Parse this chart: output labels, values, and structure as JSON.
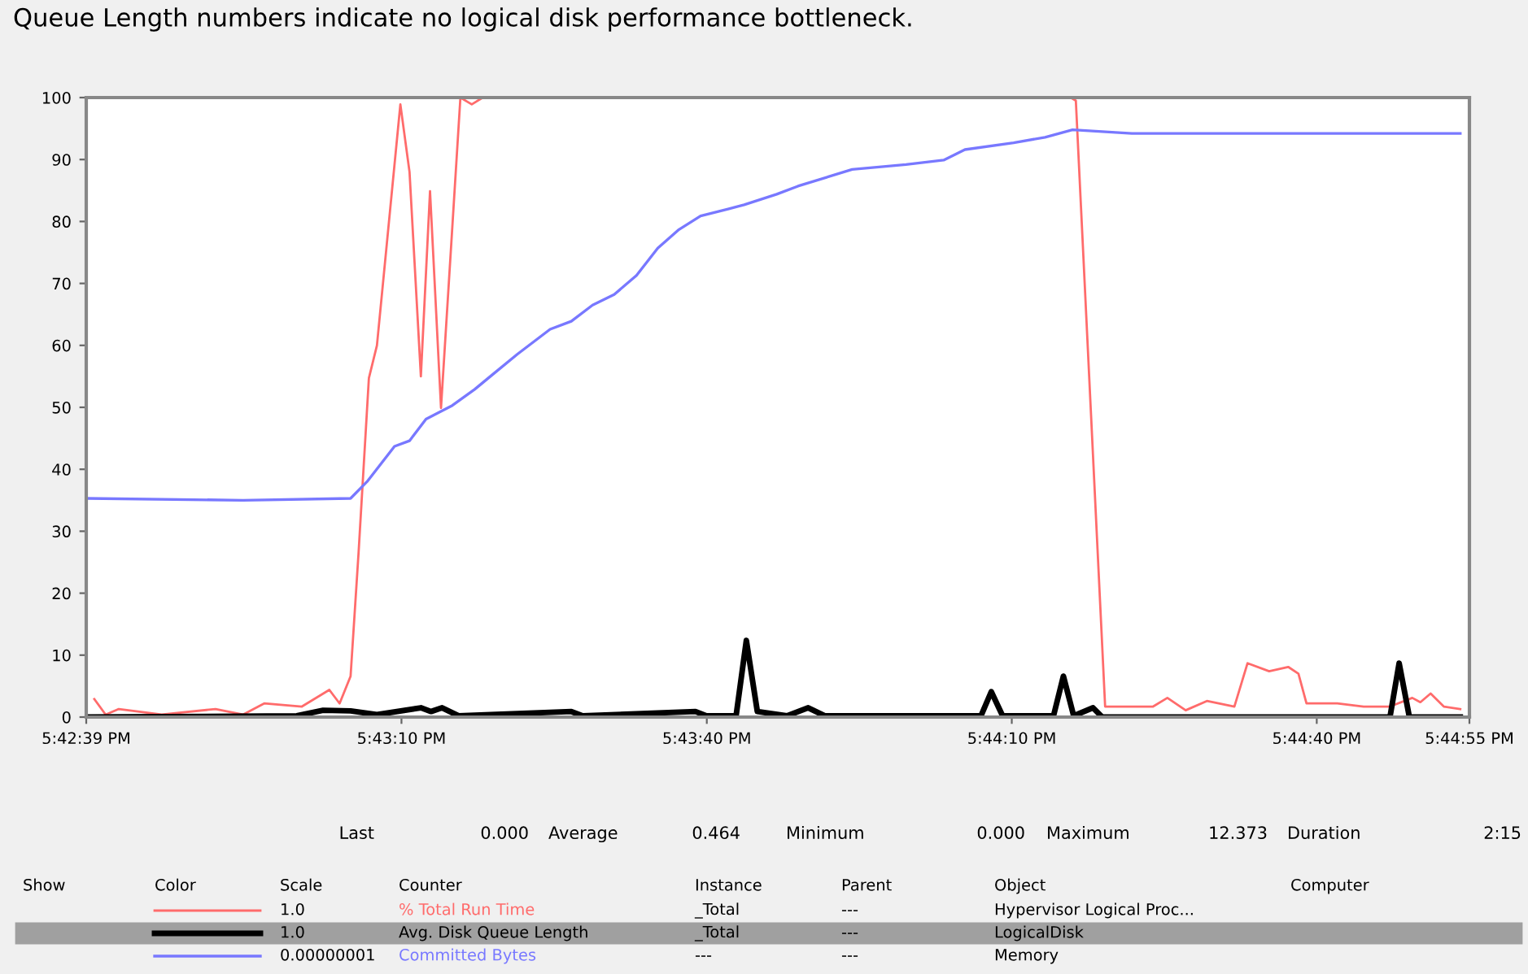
{
  "chart_data": {
    "type": "line",
    "annotations": [
      "Queue Length numbers indicate no logical disk performance bottleneck.",
      "Last",
      "0.000",
      "Average",
      "0.464",
      "Minimum",
      "0.000",
      "Maximum",
      "12.373",
      "Duration",
      "2:15",
      "Show",
      "Color",
      "Scale",
      "Counter",
      "Instance",
      "Parent",
      "Object",
      "Computer",
      "1.0",
      "_Total",
      "---",
      "Hypervisor Logical Proc...",
      "1.0",
      "_Total",
      "---",
      "LogicalDisk",
      "0.00000001",
      "---",
      "---",
      "Memory"
    ],
    "xlim": [
      17.71083,
      17.74861
    ],
    "xticks": [
      {
        "value": 17.71083,
        "label": "5:42:39 PM"
      },
      {
        "value": 17.71944,
        "label": "5:43:10 PM"
      },
      {
        "value": 17.72778,
        "label": "5:43:40 PM"
      },
      {
        "value": 17.73611,
        "label": "5:44:10 PM"
      },
      {
        "value": 17.74444,
        "label": "5:44:40 PM"
      },
      {
        "value": 17.74861,
        "label": "5:44:55 PM"
      }
    ],
    "ylim": [
      0,
      100
    ],
    "yticks": [
      0,
      10,
      20,
      30,
      40,
      50,
      60,
      70,
      80,
      90,
      100
    ],
    "grid": false,
    "legend": "bottom",
    "marker": "none",
    "line_style": "solid",
    "series": [
      {
        "name": "% Total Run Time",
        "color": "#ff6b6b",
        "x": [
          17.71105,
          17.71136,
          17.71172,
          17.71289,
          17.71436,
          17.71511,
          17.71569,
          17.71672,
          17.71747,
          17.71775,
          17.71805,
          17.71827,
          17.71855,
          17.71877,
          17.71941,
          17.71966,
          17.71997,
          17.72022,
          17.72052,
          17.72105,
          17.72136,
          17.72166,
          17.73772,
          17.73786,
          17.73866,
          17.73997,
          17.74036,
          17.74086,
          17.74144,
          17.74219,
          17.74255,
          17.74314,
          17.74366,
          17.74394,
          17.74416,
          17.745,
          17.74572,
          17.74644,
          17.74705,
          17.74727,
          17.74755,
          17.74791,
          17.74836
        ],
        "values": [
          2.9,
          0.4,
          1.3,
          0.4,
          1.3,
          0.4,
          2.2,
          1.7,
          4.4,
          2.2,
          6.6,
          26.7,
          54.7,
          60,
          98.9,
          88,
          55,
          84.9,
          49.9,
          100,
          98.9,
          100,
          100,
          99.5,
          1.7,
          1.7,
          3.1,
          1.1,
          2.6,
          1.7,
          8.7,
          7.4,
          8.1,
          7,
          2.2,
          2.2,
          1.7,
          1.7,
          3.1,
          2.4,
          3.8,
          1.7,
          1.3
        ]
      },
      {
        "name": "Avg. Disk Queue Length",
        "color": "#000000",
        "x": [
          17.71083,
          17.71658,
          17.7173,
          17.71805,
          17.71877,
          17.71997,
          17.72025,
          17.72055,
          17.721,
          17.72408,
          17.72439,
          17.72747,
          17.72777,
          17.72858,
          17.72886,
          17.72916,
          17.72997,
          17.73055,
          17.731,
          17.73527,
          17.73555,
          17.73586,
          17.73725,
          17.73752,
          17.7378,
          17.73833,
          17.73858,
          17.74644,
          17.74669,
          17.74697,
          17.74836
        ],
        "values": [
          0,
          0.2,
          1.1,
          1,
          0.4,
          1.5,
          0.9,
          1.5,
          0.2,
          0.9,
          0.2,
          0.9,
          0.2,
          0.2,
          12.373,
          0.9,
          0.2,
          1.5,
          0.2,
          0.2,
          4.1,
          0.2,
          0.2,
          6.6,
          0.2,
          1.5,
          0,
          0,
          8.7,
          0,
          0
        ]
      },
      {
        "name": "Committed Bytes",
        "color": "#7878ff",
        "x": [
          17.71083,
          17.71511,
          17.71805,
          17.7185,
          17.71925,
          17.71966,
          17.72011,
          17.72083,
          17.72144,
          17.72189,
          17.72261,
          17.7235,
          17.72408,
          17.72466,
          17.72525,
          17.72586,
          17.72644,
          17.72702,
          17.72761,
          17.72836,
          17.7288,
          17.72969,
          17.73027,
          17.73175,
          17.73322,
          17.73425,
          17.73483,
          17.73616,
          17.73702,
          17.73777,
          17.73939,
          17.74247,
          17.74836
        ],
        "values": [
          35.3,
          35,
          35.3,
          38,
          43.7,
          44.6,
          48.1,
          50.3,
          52.9,
          55.1,
          58.6,
          62.6,
          63.9,
          66.5,
          68.2,
          71.3,
          75.7,
          78.7,
          80.9,
          82,
          82.7,
          84.4,
          85.7,
          88.4,
          89.2,
          89.9,
          91.6,
          92.7,
          93.6,
          94.8,
          94.2,
          94.2,
          94.2
        ]
      }
    ]
  }
}
